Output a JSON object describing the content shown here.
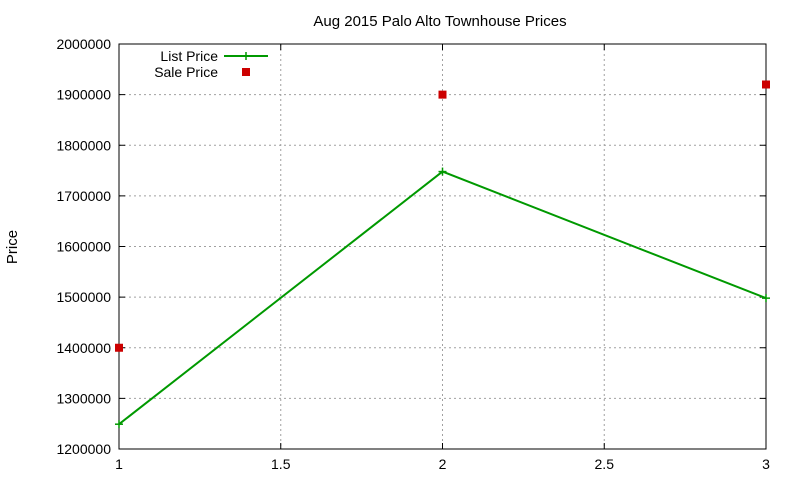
{
  "chart_data": {
    "type": "line",
    "title": "Aug 2015 Palo Alto Townhouse Prices",
    "xlabel": "",
    "ylabel": "Price",
    "xlim": [
      1,
      3
    ],
    "ylim": [
      1200000,
      2000000
    ],
    "x_ticks": [
      1,
      1.5,
      2,
      2.5,
      3
    ],
    "y_ticks": [
      1200000,
      1300000,
      1400000,
      1500000,
      1600000,
      1700000,
      1800000,
      1900000,
      2000000
    ],
    "grid": true,
    "legend_position": "top-left",
    "series": [
      {
        "name": "List Price",
        "style": "linespoints",
        "marker": "plus",
        "color": "#009900",
        "points": [
          {
            "x": 1,
            "y": 1249000
          },
          {
            "x": 2,
            "y": 1748000
          },
          {
            "x": 3,
            "y": 1498000
          }
        ]
      },
      {
        "name": "Sale Price",
        "style": "points",
        "marker": "square",
        "color": "#cc0000",
        "points": [
          {
            "x": 1,
            "y": 1400000
          },
          {
            "x": 2,
            "y": 1900000
          },
          {
            "x": 3,
            "y": 1920000
          }
        ]
      }
    ]
  }
}
